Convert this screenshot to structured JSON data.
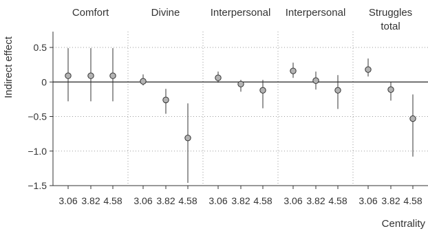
{
  "chart_data": {
    "type": "scatter",
    "subtype": "faceted point estimates with vertical confidence intervals",
    "ylabel": "Indirect effect",
    "xlabel": "Centrality",
    "ylim": [
      -1.5,
      0.7
    ],
    "yticks": [
      0.5,
      0,
      -0.5,
      -1.0,
      -1.5
    ],
    "ytick_labels": [
      "0.5",
      "0",
      "−0.5",
      "−1.0",
      "−1.5"
    ],
    "x_levels": [
      "3.06",
      "3.82",
      "4.58"
    ],
    "reference_line_y": 0,
    "horizontal_dotted_grid": true,
    "point_color": "#b3b3b3",
    "panels": [
      {
        "title_lines": [
          "Comfort"
        ],
        "points": [
          {
            "x": "3.06",
            "y": 0.09,
            "lo": -0.28,
            "hi": 0.49
          },
          {
            "x": "3.82",
            "y": 0.09,
            "lo": -0.28,
            "hi": 0.49
          },
          {
            "x": "4.58",
            "y": 0.09,
            "lo": -0.28,
            "hi": 0.49
          }
        ]
      },
      {
        "title_lines": [
          "Divine"
        ],
        "points": [
          {
            "x": "3.06",
            "y": 0.01,
            "lo": -0.05,
            "hi": 0.11
          },
          {
            "x": "3.82",
            "y": -0.26,
            "lo": -0.46,
            "hi": -0.1
          },
          {
            "x": "4.58",
            "y": -0.81,
            "lo": -1.46,
            "hi": -0.31
          }
        ]
      },
      {
        "title_lines": [
          "Interpersonal"
        ],
        "points": [
          {
            "x": "3.06",
            "y": 0.06,
            "lo": -0.01,
            "hi": 0.15
          },
          {
            "x": "3.82",
            "y": -0.03,
            "lo": -0.14,
            "hi": 0.03
          },
          {
            "x": "4.58",
            "y": -0.12,
            "lo": -0.38,
            "hi": 0.03
          }
        ]
      },
      {
        "title_lines": [
          "Interpersonal"
        ],
        "points": [
          {
            "x": "3.06",
            "y": 0.16,
            "lo": 0.06,
            "hi": 0.28
          },
          {
            "x": "3.82",
            "y": 0.02,
            "lo": -0.11,
            "hi": 0.15
          },
          {
            "x": "4.58",
            "y": -0.12,
            "lo": -0.39,
            "hi": 0.1
          }
        ]
      },
      {
        "title_lines": [
          "Struggles",
          "total"
        ],
        "points": [
          {
            "x": "3.06",
            "y": 0.18,
            "lo": 0.08,
            "hi": 0.34
          },
          {
            "x": "3.82",
            "y": -0.11,
            "lo": -0.27,
            "hi": 0.0
          },
          {
            "x": "4.58",
            "y": -0.53,
            "lo": -1.08,
            "hi": -0.18
          }
        ]
      }
    ]
  }
}
